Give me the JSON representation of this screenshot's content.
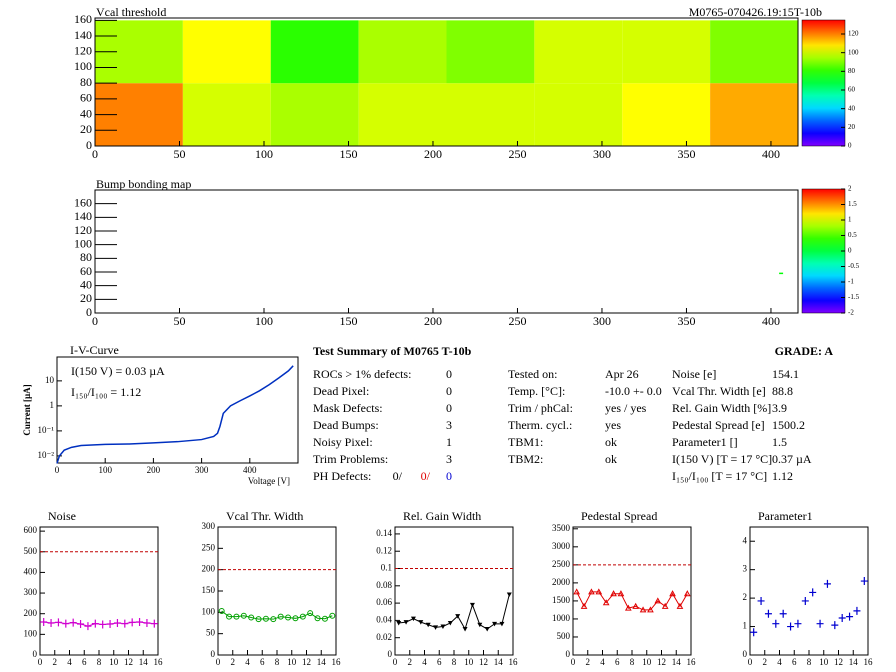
{
  "chart_data": [
    {
      "type": "heatmap",
      "title": "Vcal threshold",
      "subtitle": "M0765-070426.19:15T-10b",
      "xlim": [
        0,
        416
      ],
      "ylim": [
        0,
        163
      ],
      "xticks": [
        0,
        50,
        100,
        150,
        200,
        250,
        300,
        350,
        400
      ],
      "yticks": [
        0,
        20,
        40,
        60,
        80,
        100,
        120,
        140,
        160
      ],
      "x_bins": [
        0,
        52,
        104,
        156,
        208,
        260,
        312,
        364,
        416
      ],
      "y_bins": [
        0,
        80,
        160
      ],
      "z": [
        [
          120,
          100,
          95,
          100,
          100,
          100,
          105,
          115
        ],
        [
          95,
          105,
          80,
          95,
          90,
          100,
          100,
          90
        ]
      ],
      "zlim": [
        0,
        135
      ],
      "zticks": [
        0,
        20,
        40,
        60,
        80,
        100,
        120
      ]
    },
    {
      "type": "map-points",
      "title": "Bump bonding map",
      "xlim": [
        0,
        416
      ],
      "ylim": [
        0,
        180
      ],
      "xticks": [
        0,
        50,
        100,
        150,
        200,
        250,
        300,
        350,
        400
      ],
      "yticks": [
        0,
        20,
        40,
        60,
        80,
        100,
        120,
        140,
        160
      ],
      "x": [
        406
      ],
      "y": [
        58
      ],
      "z": [
        0.2
      ],
      "zlim": [
        -2,
        2
      ],
      "zticks": [
        -2,
        -1.5,
        -1,
        -0.5,
        0,
        0.5,
        1,
        1.5,
        2
      ]
    },
    {
      "type": "line",
      "title": "I-V-Curve",
      "x_label": "Voltage [V]",
      "y_label": "Current [µA]",
      "annotations": [
        "I(150 V) = 0.03 µA",
        "I₁₅₀/I₁₀₀ =  1.12"
      ],
      "log_y": true,
      "color": "#0030c0",
      "xlim": [
        0,
        500
      ],
      "ylim": [
        0.0052,
        90
      ],
      "xticks": [
        0,
        100,
        200,
        300,
        400
      ],
      "yticks": [
        {
          "value": 0.01,
          "label": "10⁻²"
        },
        {
          "value": 0.1,
          "label": "10⁻¹"
        },
        1,
        10
      ],
      "x": [
        0,
        5,
        15,
        30,
        50,
        100,
        150,
        200,
        250,
        300,
        325,
        333,
        338,
        345,
        360,
        380,
        400,
        420,
        440,
        460,
        480,
        490
      ],
      "y": [
        0.005,
        0.01,
        0.017,
        0.022,
        0.026,
        0.029,
        0.03,
        0.033,
        0.037,
        0.045,
        0.06,
        0.08,
        0.15,
        0.5,
        1.0,
        1.6,
        2.5,
        4,
        7,
        13,
        25,
        40
      ]
    },
    {
      "type": "scatter",
      "title": "Noise",
      "color": "#d000d0",
      "marker": "plus",
      "connected": true,
      "xlim": [
        0,
        16
      ],
      "ylim": [
        0,
        620
      ],
      "xticks": [
        0,
        2,
        4,
        6,
        8,
        10,
        12,
        14,
        16
      ],
      "yticks": [
        0,
        100,
        200,
        300,
        400,
        500,
        600
      ],
      "reference_line": 500,
      "x": [
        0.5,
        1.5,
        2.5,
        3.5,
        4.5,
        5.5,
        6.5,
        7.5,
        8.5,
        9.5,
        10.5,
        11.5,
        12.5,
        13.5,
        14.5,
        15.5
      ],
      "y": [
        160,
        155,
        158,
        152,
        157,
        150,
        140,
        152,
        148,
        150,
        155,
        152,
        158,
        160,
        155,
        152
      ]
    },
    {
      "type": "scatter",
      "title": "Vcal Thr. Width",
      "color": "#00a000",
      "marker": "circle",
      "connected": true,
      "xlim": [
        0,
        16
      ],
      "ylim": [
        0,
        300
      ],
      "xticks": [
        0,
        2,
        4,
        6,
        8,
        10,
        12,
        14,
        16
      ],
      "yticks": [
        0,
        50,
        100,
        150,
        200,
        250,
        300
      ],
      "reference_line": 200,
      "x": [
        0.5,
        1.5,
        2.5,
        3.5,
        4.5,
        5.5,
        6.5,
        7.5,
        8.5,
        9.5,
        10.5,
        11.5,
        12.5,
        13.5,
        14.5,
        15.5
      ],
      "y": [
        103,
        90,
        90,
        92,
        88,
        84,
        85,
        84,
        90,
        88,
        86,
        90,
        98,
        86,
        85,
        92
      ]
    },
    {
      "type": "scatter",
      "title": "Rel. Gain Width",
      "color": "#000000",
      "marker": "triangle-down",
      "connected": true,
      "xlim": [
        0,
        16
      ],
      "ylim": [
        0,
        0.148
      ],
      "xticks": [
        0,
        2,
        4,
        6,
        8,
        10,
        12,
        14,
        16
      ],
      "yticks": [
        0,
        0.02,
        0.04,
        0.06,
        0.08,
        0.1,
        0.12,
        0.14
      ],
      "reference_line": 0.1,
      "x": [
        0.5,
        1.5,
        2.5,
        3.5,
        4.5,
        5.5,
        6.5,
        7.5,
        8.5,
        9.5,
        10.5,
        11.5,
        12.5,
        13.5,
        14.5,
        15.5
      ],
      "y": [
        0.037,
        0.038,
        0.042,
        0.038,
        0.035,
        0.032,
        0.033,
        0.037,
        0.045,
        0.03,
        0.058,
        0.035,
        0.03,
        0.036,
        0.036,
        0.07
      ]
    },
    {
      "type": "scatter",
      "title": "Pedestal Spread",
      "color": "#e00000",
      "marker": "triangle-up",
      "connected": true,
      "xlim": [
        0,
        16
      ],
      "ylim": [
        0,
        3550
      ],
      "xticks": [
        0,
        2,
        4,
        6,
        8,
        10,
        12,
        14,
        16
      ],
      "yticks": [
        0,
        500,
        1000,
        1500,
        2000,
        2500,
        3000,
        3500
      ],
      "reference_line": 2500,
      "x": [
        0.5,
        1.5,
        2.5,
        3.5,
        4.5,
        5.5,
        6.5,
        7.5,
        8.5,
        9.5,
        10.5,
        11.5,
        12.5,
        13.5,
        14.5,
        15.5
      ],
      "y": [
        1750,
        1350,
        1750,
        1750,
        1450,
        1700,
        1700,
        1300,
        1350,
        1250,
        1250,
        1500,
        1350,
        1700,
        1350,
        1700
      ]
    },
    {
      "type": "scatter",
      "title": "Parameter1",
      "color": "#0000d0",
      "marker": "plus",
      "connected": false,
      "xlim": [
        0,
        16
      ],
      "ylim": [
        0,
        4.5
      ],
      "xticks": [
        0,
        2,
        4,
        6,
        8,
        10,
        12,
        14,
        16
      ],
      "yticks": [
        0,
        1,
        2,
        3,
        4
      ],
      "x": [
        0.5,
        1.5,
        2.5,
        3.5,
        4.5,
        5.5,
        6.5,
        7.5,
        8.5,
        9.5,
        10.5,
        11.5,
        12.5,
        13.5,
        14.5,
        15.5
      ],
      "y": [
        0.8,
        1.9,
        1.45,
        1.1,
        1.45,
        1.0,
        1.1,
        1.9,
        2.2,
        1.1,
        2.5,
        1.05,
        1.3,
        1.35,
        1.55,
        2.6
      ]
    }
  ],
  "summary": {
    "title": "Test Summary of M0765     T-10b",
    "grade": "GRADE:  A",
    "left": [
      {
        "label": "ROCs > 1% defects:",
        "value": "0"
      },
      {
        "label": "Dead Pixel:",
        "value": "0"
      },
      {
        "label": "Mask Defects:",
        "value": "0"
      },
      {
        "label": "Dead Bumps:",
        "value": "3"
      },
      {
        "label": "Noisy Pixel:",
        "value": "1"
      },
      {
        "label": "Trim Problems:",
        "value": "3"
      }
    ],
    "ph_defects": {
      "label": "PH Defects:",
      "values": [
        "0/",
        "0/",
        "0"
      ]
    },
    "middle": [
      {
        "label": "Tested on:",
        "value": "Apr 26"
      },
      {
        "label": "Temp. [°C]:",
        "value": "-10.0 +- 0.0"
      },
      {
        "label": "Trim / phCal:",
        "value": "yes / yes"
      },
      {
        "label": "Therm. cycl.:",
        "value": "yes"
      },
      {
        "label": "TBM1:",
        "value": "ok"
      },
      {
        "label": "TBM2:",
        "value": "ok"
      }
    ],
    "right": [
      {
        "label": "Noise [e]",
        "value": "154.1"
      },
      {
        "label": "Vcal Thr. Width [e]",
        "value": "88.8"
      },
      {
        "label": "Rel. Gain Width [%]",
        "value": "3.9"
      },
      {
        "label": "Pedestal Spread [e]",
        "value": "1500.2"
      },
      {
        "label": "Parameter1 []",
        "value": "1.5"
      },
      {
        "label": "I(150 V) [T = 17 °C]",
        "value": "0.37 µA"
      },
      {
        "label": "I₁₅₀/I₁₀₀  [T = 17 °C]",
        "value": "1.12"
      }
    ]
  }
}
